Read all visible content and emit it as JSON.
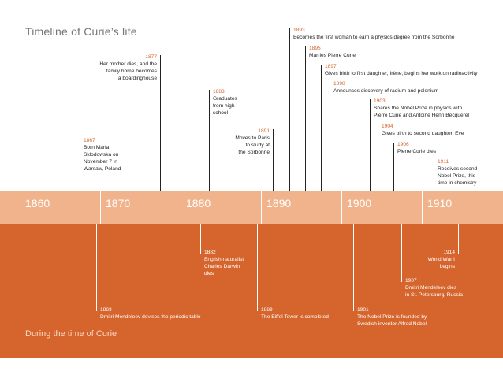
{
  "titles": {
    "top": "Timeline of Curie’s life",
    "bottom": "During the time of Curie"
  },
  "axis": {
    "decades": [
      "1860",
      "1870",
      "1880",
      "1890",
      "1900",
      "1910"
    ]
  },
  "colors": {
    "orange": "#d5652c",
    "peach_band": "#f0b38c",
    "stem_dark": "#222222"
  },
  "curie_events": [
    {
      "year": "1867",
      "lines": [
        "Born Maria",
        "Sklodowska on",
        "November 7 in",
        "Warsaw, Poland"
      ]
    },
    {
      "year": "1877",
      "lines": [
        "Her mother dies, and the",
        "family home becomes",
        "a boardinghouse"
      ]
    },
    {
      "year": "1883",
      "lines": [
        "Graduates",
        "from high",
        "school"
      ]
    },
    {
      "year": "1891",
      "lines": [
        "Moves to Paris",
        "to study at",
        "the Sorbonne"
      ]
    },
    {
      "year": "1893",
      "lines": [
        "Becomes the first woman to earn a physics degree from the Sorbonne"
      ]
    },
    {
      "year": "1895",
      "lines": [
        "Marries Pierre Curie"
      ]
    },
    {
      "year": "1897",
      "lines": [
        "Gives birth to first daughter, Irène; begins her work on radioactivity"
      ]
    },
    {
      "year": "1898",
      "lines": [
        "Announces discovery of radium and polonium"
      ]
    },
    {
      "year": "1903",
      "lines": [
        "Shares the Nobel Prize in physics with",
        "Pierre Curie and Antoine Henri Becquerel"
      ]
    },
    {
      "year": "1904",
      "lines": [
        "Gives birth to second daughter, Eve"
      ]
    },
    {
      "year": "1906",
      "lines": [
        "Pierre Curie dies"
      ]
    },
    {
      "year": "1911",
      "lines": [
        "Receives second",
        "Nobel Prize, this",
        "time in chemistry"
      ]
    }
  ],
  "world_events": [
    {
      "year": "1869",
      "lines": [
        "Dmitri Mendeleev devises the periodic table"
      ]
    },
    {
      "year": "1882",
      "lines": [
        "English naturalist",
        "Charles Darwin",
        "dies"
      ]
    },
    {
      "year": "1889",
      "lines": [
        "The Eiffel Tower is completed"
      ]
    },
    {
      "year": "1901",
      "lines": [
        "The Nobel Prize is founded by",
        "Swedish inventor Alfred Nobel"
      ]
    },
    {
      "year": "1907",
      "lines": [
        "Dmitri Mendeleev dies",
        "in St. Petersburg, Russia"
      ]
    },
    {
      "year": "1914",
      "lines": [
        "World War I",
        "begins"
      ]
    }
  ]
}
